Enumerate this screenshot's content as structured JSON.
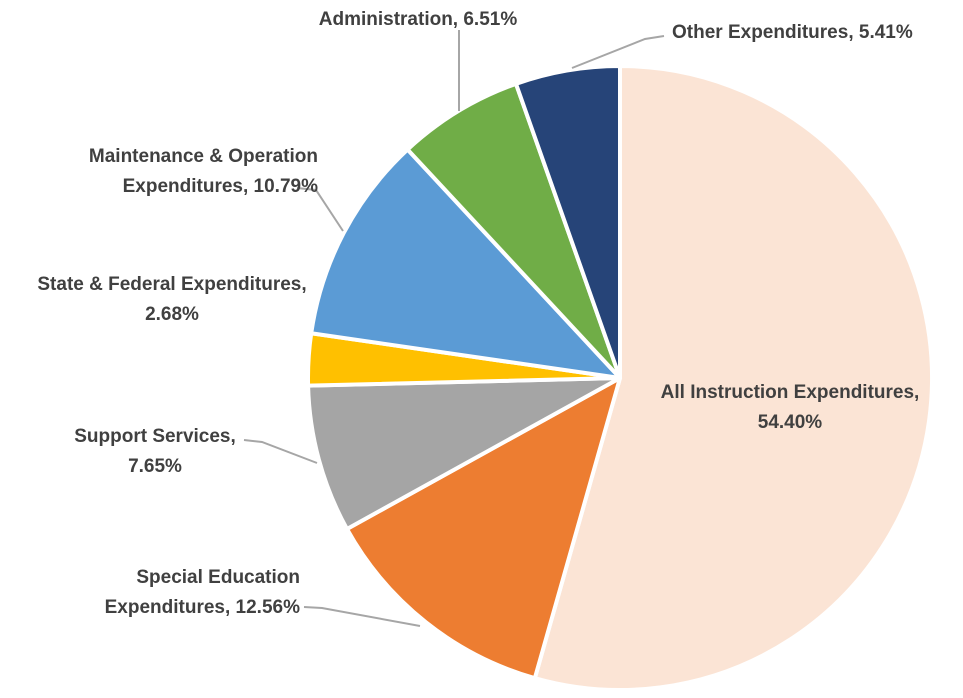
{
  "chart_data": {
    "type": "pie",
    "title": "",
    "start_angle_deg": 0,
    "direction": "clockwise",
    "slices": [
      {
        "label_lines": [
          "All Instruction Expenditures,",
          "54.40%"
        ],
        "category": "All Instruction Expenditures",
        "value": 54.4,
        "color": "#FBE4D5",
        "label_anchor": "middle"
      },
      {
        "label_lines": [
          "Special Education",
          "Expenditures, 12.56%"
        ],
        "category": "Special Education Expenditures",
        "value": 12.56,
        "color": "#ED7D31",
        "label_anchor": "end"
      },
      {
        "label_lines": [
          "Support Services,",
          "7.65%"
        ],
        "category": "Support Services",
        "value": 7.65,
        "color": "#A5A5A5",
        "label_anchor": "middle"
      },
      {
        "label_lines": [
          "State & Federal Expenditures,",
          "2.68%"
        ],
        "category": "State & Federal Expenditures",
        "value": 2.68,
        "color": "#FFC000",
        "label_anchor": "middle"
      },
      {
        "label_lines": [
          "Maintenance & Operation",
          "Expenditures, 10.79%"
        ],
        "category": "Maintenance & Operation Expenditures",
        "value": 10.79,
        "color": "#5B9BD5",
        "label_anchor": "end"
      },
      {
        "label_lines": [
          "Administration, 6.51%"
        ],
        "category": "Administration",
        "value": 6.51,
        "color": "#70AD47",
        "label_anchor": "middle"
      },
      {
        "label_lines": [
          "Other Expenditures, 5.41%"
        ],
        "category": "Other Expenditures",
        "value": 5.41,
        "color": "#264478",
        "label_anchor": "start"
      }
    ]
  }
}
